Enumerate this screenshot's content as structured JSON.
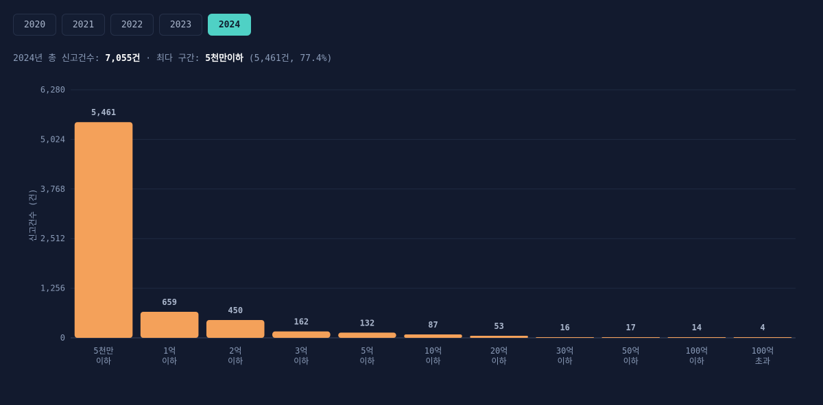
{
  "tabs": [
    {
      "label": "2020",
      "active": false
    },
    {
      "label": "2021",
      "active": false
    },
    {
      "label": "2022",
      "active": false
    },
    {
      "label": "2023",
      "active": false
    },
    {
      "label": "2024",
      "active": true
    }
  ],
  "summary": {
    "prefix": "2024년 총 신고건수: ",
    "total": "7,055건",
    "mid": " · 최다 구간: ",
    "top_bucket": "5천만이하",
    "detail": " (5,461건, 77.4%)"
  },
  "colors": {
    "bar": "#f4a15a",
    "accent": "#4fd1c5",
    "grid": "#1f2a42",
    "background": "#121a2e"
  },
  "chart_data": {
    "type": "bar",
    "ylabel": "신고건수 (건)",
    "ylim": [
      0,
      6280
    ],
    "yticks": [
      "0",
      "1,256",
      "2,512",
      "3,768",
      "5,024",
      "6,280"
    ],
    "ytick_values": [
      0,
      1256,
      2512,
      3768,
      5024,
      6280
    ],
    "grid": true,
    "categories": [
      [
        "5천만",
        "이하"
      ],
      [
        "1억",
        "이하"
      ],
      [
        "2억",
        "이하"
      ],
      [
        "3억",
        "이하"
      ],
      [
        "5억",
        "이하"
      ],
      [
        "10억",
        "이하"
      ],
      [
        "20억",
        "이하"
      ],
      [
        "30억",
        "이하"
      ],
      [
        "50억",
        "이하"
      ],
      [
        "100억",
        "이하"
      ],
      [
        "100억",
        "초과"
      ]
    ],
    "values": [
      5461,
      659,
      450,
      162,
      132,
      87,
      53,
      16,
      17,
      14,
      4
    ],
    "value_labels": [
      "5,461",
      "659",
      "450",
      "162",
      "132",
      "87",
      "53",
      "16",
      "17",
      "14",
      "4"
    ]
  }
}
